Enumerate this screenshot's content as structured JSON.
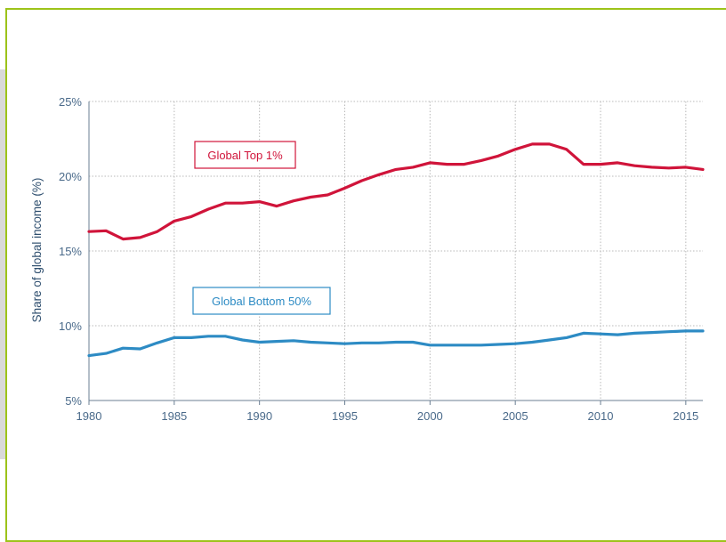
{
  "colors": {
    "frame": "#9dc31a",
    "top1": "#d0143a",
    "bottom50": "#2d8bc4",
    "grid": "#b8b8b8",
    "axis_text": "#4a6a8a"
  },
  "chart_data": {
    "type": "line",
    "title": "",
    "xlabel": "",
    "ylabel": "Share of global income (%)",
    "xlim": [
      1980,
      2016
    ],
    "ylim": [
      5,
      25
    ],
    "x_ticks": [
      1980,
      1985,
      1990,
      1995,
      2000,
      2005,
      2010,
      2015
    ],
    "x_tick_labels": [
      "1980",
      "1985",
      "1990",
      "1995",
      "2000",
      "2005",
      "2010",
      "2015"
    ],
    "y_ticks": [
      5,
      10,
      15,
      20,
      25
    ],
    "y_tick_labels": [
      "5%",
      "10%",
      "15%",
      "20%",
      "25%"
    ],
    "grid": true,
    "x": [
      1980,
      1981,
      1982,
      1983,
      1984,
      1985,
      1986,
      1987,
      1988,
      1989,
      1990,
      1991,
      1992,
      1993,
      1994,
      1995,
      1996,
      1997,
      1998,
      1999,
      2000,
      2001,
      2002,
      2003,
      2004,
      2005,
      2006,
      2007,
      2008,
      2009,
      2010,
      2011,
      2012,
      2013,
      2014,
      2015,
      2016
    ],
    "series": [
      {
        "name": "Global Top 1%",
        "values": [
          16.3,
          16.35,
          15.8,
          15.9,
          16.3,
          17.0,
          17.3,
          17.8,
          18.2,
          18.2,
          18.3,
          18.0,
          18.35,
          18.6,
          18.75,
          19.2,
          19.7,
          20.1,
          20.45,
          20.6,
          20.9,
          20.8,
          20.8,
          21.05,
          21.35,
          21.8,
          22.15,
          22.15,
          21.8,
          20.8,
          20.8,
          20.9,
          20.7,
          20.6,
          20.55,
          20.6,
          20.45
        ],
        "label_position": "above"
      },
      {
        "name": "Global Bottom 50%",
        "values": [
          8.0,
          8.15,
          8.5,
          8.45,
          8.85,
          9.2,
          9.2,
          9.3,
          9.3,
          9.05,
          8.9,
          8.95,
          9.0,
          8.9,
          8.85,
          8.8,
          8.85,
          8.85,
          8.9,
          8.9,
          8.7,
          8.7,
          8.7,
          8.7,
          8.75,
          8.8,
          8.9,
          9.05,
          9.2,
          9.5,
          9.45,
          9.4,
          9.5,
          9.55,
          9.6,
          9.65,
          9.65
        ],
        "label_position": "above"
      }
    ]
  }
}
